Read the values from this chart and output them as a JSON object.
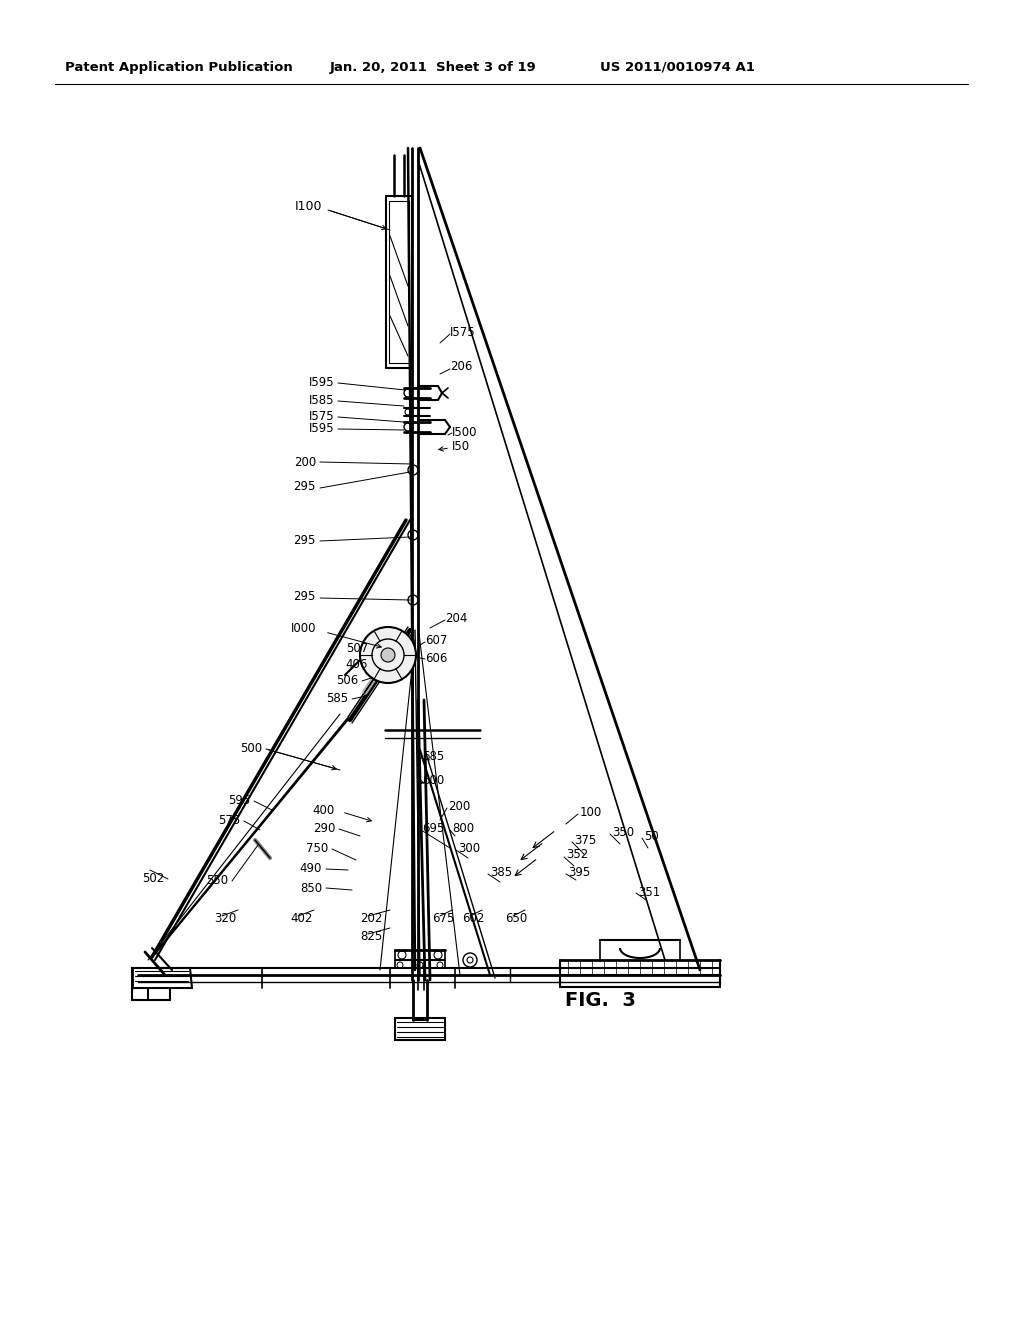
{
  "header_left": "Patent Application Publication",
  "header_center": "Jan. 20, 2011  Sheet 3 of 19",
  "header_right": "US 2011/0010974 A1",
  "figure_label": "FIG.  3",
  "bg_color": "#ffffff",
  "fig_width": 10.24,
  "fig_height": 13.2,
  "dpi": 100
}
